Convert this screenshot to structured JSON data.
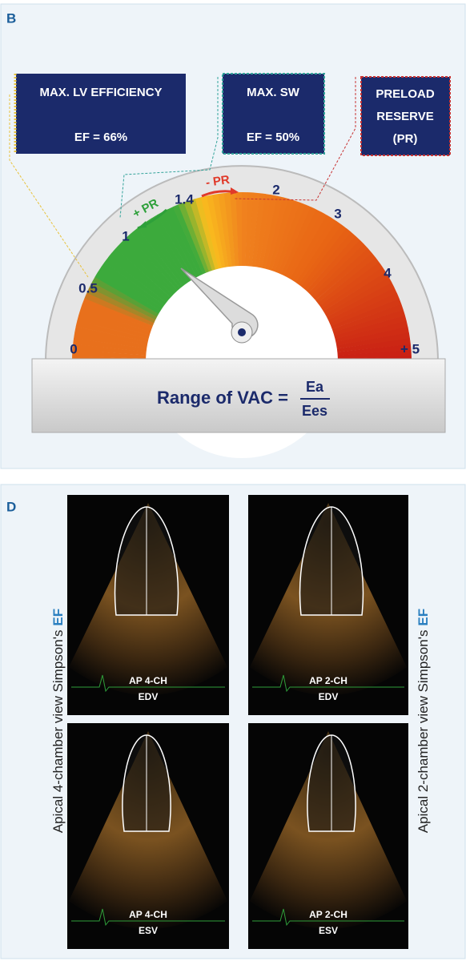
{
  "panel_b": {
    "label": "B",
    "boxes": [
      {
        "lines": [
          "MAX. LV EFFICIENCY",
          "EF = 66%"
        ]
      },
      {
        "lines": [
          "MAX. SW",
          "EF = 50%"
        ]
      },
      {
        "lines": [
          "PRELOAD",
          "RESERVE",
          "(PR)"
        ]
      }
    ],
    "gauge_labels": [
      "0",
      "0.5",
      "1",
      "1.4",
      "2",
      "3",
      "4",
      "+ 5"
    ],
    "plus_pr": "+ PR",
    "minus_pr": "- PR",
    "formula": {
      "text": "Range of VAC =",
      "numerator": "Ea",
      "denominator": "Ees"
    }
  },
  "panel_d": {
    "label": "D",
    "images": [
      {
        "view": "AP 4-CH",
        "phase": "EDV"
      },
      {
        "view": "AP 2-CH",
        "phase": "EDV"
      },
      {
        "view": "AP 4-CH",
        "phase": "ESV"
      },
      {
        "view": "AP 2-CH",
        "phase": "ESV"
      }
    ],
    "left_caption": {
      "text": "Apical 4-chamber view Simpson's",
      "highlight": "EF"
    },
    "right_caption": {
      "text": "Apical 2-chamber view Simpson's",
      "highlight": "EF"
    }
  }
}
